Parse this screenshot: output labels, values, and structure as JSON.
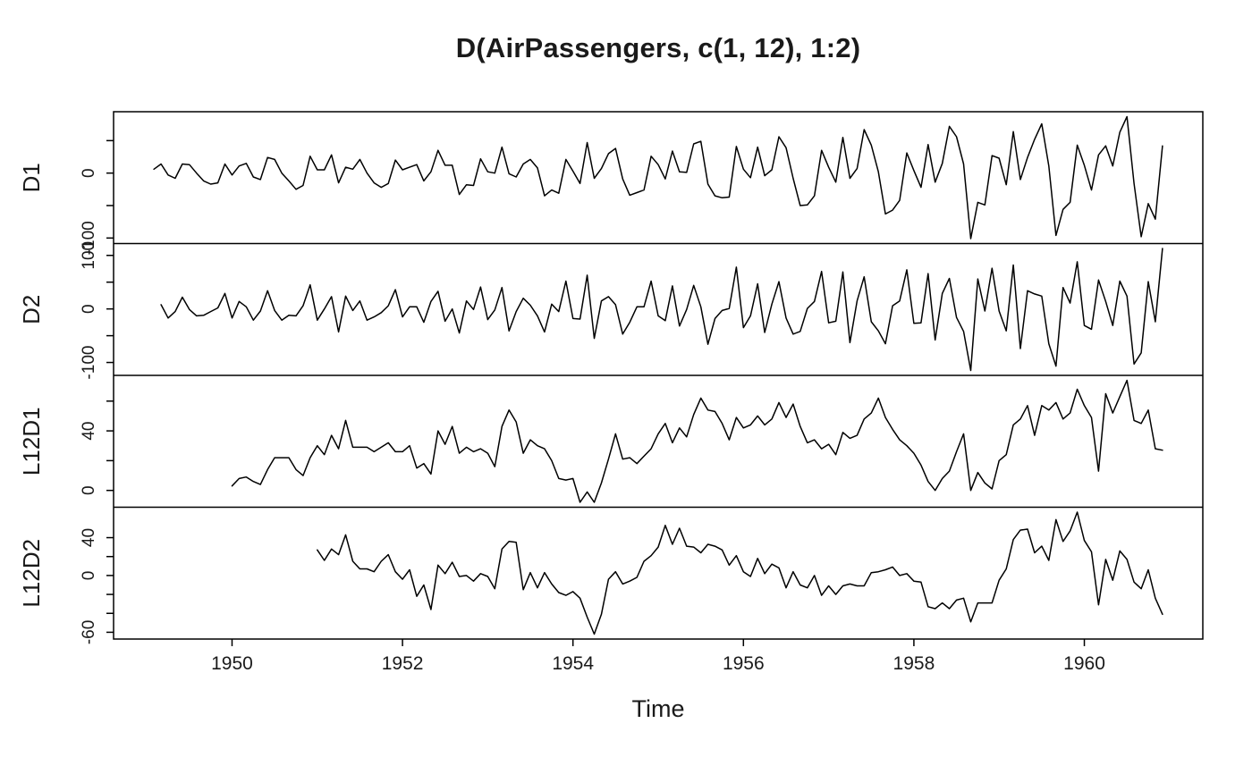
{
  "chart_data": {
    "type": "line",
    "title": "D(AirPassengers, c(1, 12), 1:2)",
    "xlabel": "Time",
    "line_color": "#000000",
    "background": "#ffffff",
    "start_year": 1949,
    "frequency": 12,
    "x_axis": {
      "ticks": [
        1950,
        1952,
        1954,
        1956,
        1958,
        1960
      ],
      "expand_frac": 0.04
    },
    "y_expand_frac": 0.04,
    "source_series": {
      "name": "AirPassengers",
      "values": [
        112,
        118,
        132,
        129,
        121,
        135,
        148,
        148,
        136,
        119,
        104,
        118,
        115,
        126,
        141,
        135,
        125,
        149,
        170,
        170,
        158,
        133,
        114,
        140,
        145,
        150,
        178,
        163,
        172,
        178,
        199,
        199,
        184,
        162,
        146,
        166,
        171,
        180,
        193,
        181,
        183,
        218,
        230,
        242,
        209,
        191,
        172,
        194,
        196,
        196,
        236,
        235,
        229,
        243,
        264,
        272,
        237,
        211,
        180,
        201,
        204,
        188,
        235,
        227,
        234,
        264,
        302,
        293,
        259,
        229,
        203,
        229,
        242,
        233,
        267,
        269,
        270,
        315,
        364,
        347,
        312,
        274,
        237,
        278,
        284,
        277,
        317,
        313,
        318,
        374,
        413,
        405,
        355,
        306,
        271,
        306,
        315,
        301,
        356,
        348,
        355,
        422,
        465,
        467,
        404,
        347,
        305,
        336,
        340,
        318,
        362,
        348,
        363,
        435,
        491,
        505,
        404,
        359,
        310,
        337,
        360,
        342,
        406,
        396,
        420,
        472,
        548,
        559,
        463,
        407,
        362,
        405,
        417,
        391,
        419,
        461,
        472,
        535,
        622,
        606,
        508,
        461,
        390,
        432
      ]
    },
    "panels": [
      {
        "label": "D1",
        "lag": 1,
        "differences": 1,
        "y_ticks": [
          {
            "v": 50,
            "t": ""
          },
          {
            "v": 0,
            "t": "0"
          },
          {
            "v": -50,
            "t": ""
          },
          {
            "v": -100,
            "t": "-100"
          }
        ]
      },
      {
        "label": "D2",
        "lag": 1,
        "differences": 2,
        "y_ticks": [
          {
            "v": 100,
            "t": "100"
          },
          {
            "v": 50,
            "t": ""
          },
          {
            "v": 0,
            "t": "0"
          },
          {
            "v": -50,
            "t": ""
          },
          {
            "v": -100,
            "t": "-100"
          }
        ]
      },
      {
        "label": "L12D1",
        "lag": 12,
        "differences": 1,
        "y_ticks": [
          {
            "v": 60,
            "t": ""
          },
          {
            "v": 40,
            "t": "40"
          },
          {
            "v": 20,
            "t": ""
          },
          {
            "v": 0,
            "t": "0"
          }
        ]
      },
      {
        "label": "L12D2",
        "lag": 12,
        "differences": 2,
        "y_ticks": [
          {
            "v": 40,
            "t": "40"
          },
          {
            "v": 20,
            "t": ""
          },
          {
            "v": 0,
            "t": "0"
          },
          {
            "v": -20,
            "t": ""
          },
          {
            "v": -40,
            "t": ""
          },
          {
            "v": -60,
            "t": "-60"
          }
        ]
      }
    ]
  }
}
